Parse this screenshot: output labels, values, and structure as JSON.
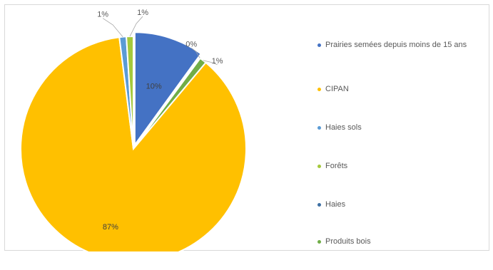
{
  "chart_data": {
    "type": "pie",
    "categories": [
      "Prairies semées depuis moins de 15 ans",
      "CIPAN",
      "Haies sols",
      "Forêts",
      "Haies",
      "Produits bois"
    ],
    "values": [
      10,
      87,
      1,
      1,
      0,
      1
    ],
    "value_labels": [
      "10%",
      "87%",
      "1%",
      "1%",
      "0%",
      "1%"
    ],
    "colors": [
      "#4472c4",
      "#ffc000",
      "#5b9bd5",
      "#a5c93c",
      "#3d6fa3",
      "#70ad47"
    ],
    "title": "",
    "legend_position": "right"
  }
}
